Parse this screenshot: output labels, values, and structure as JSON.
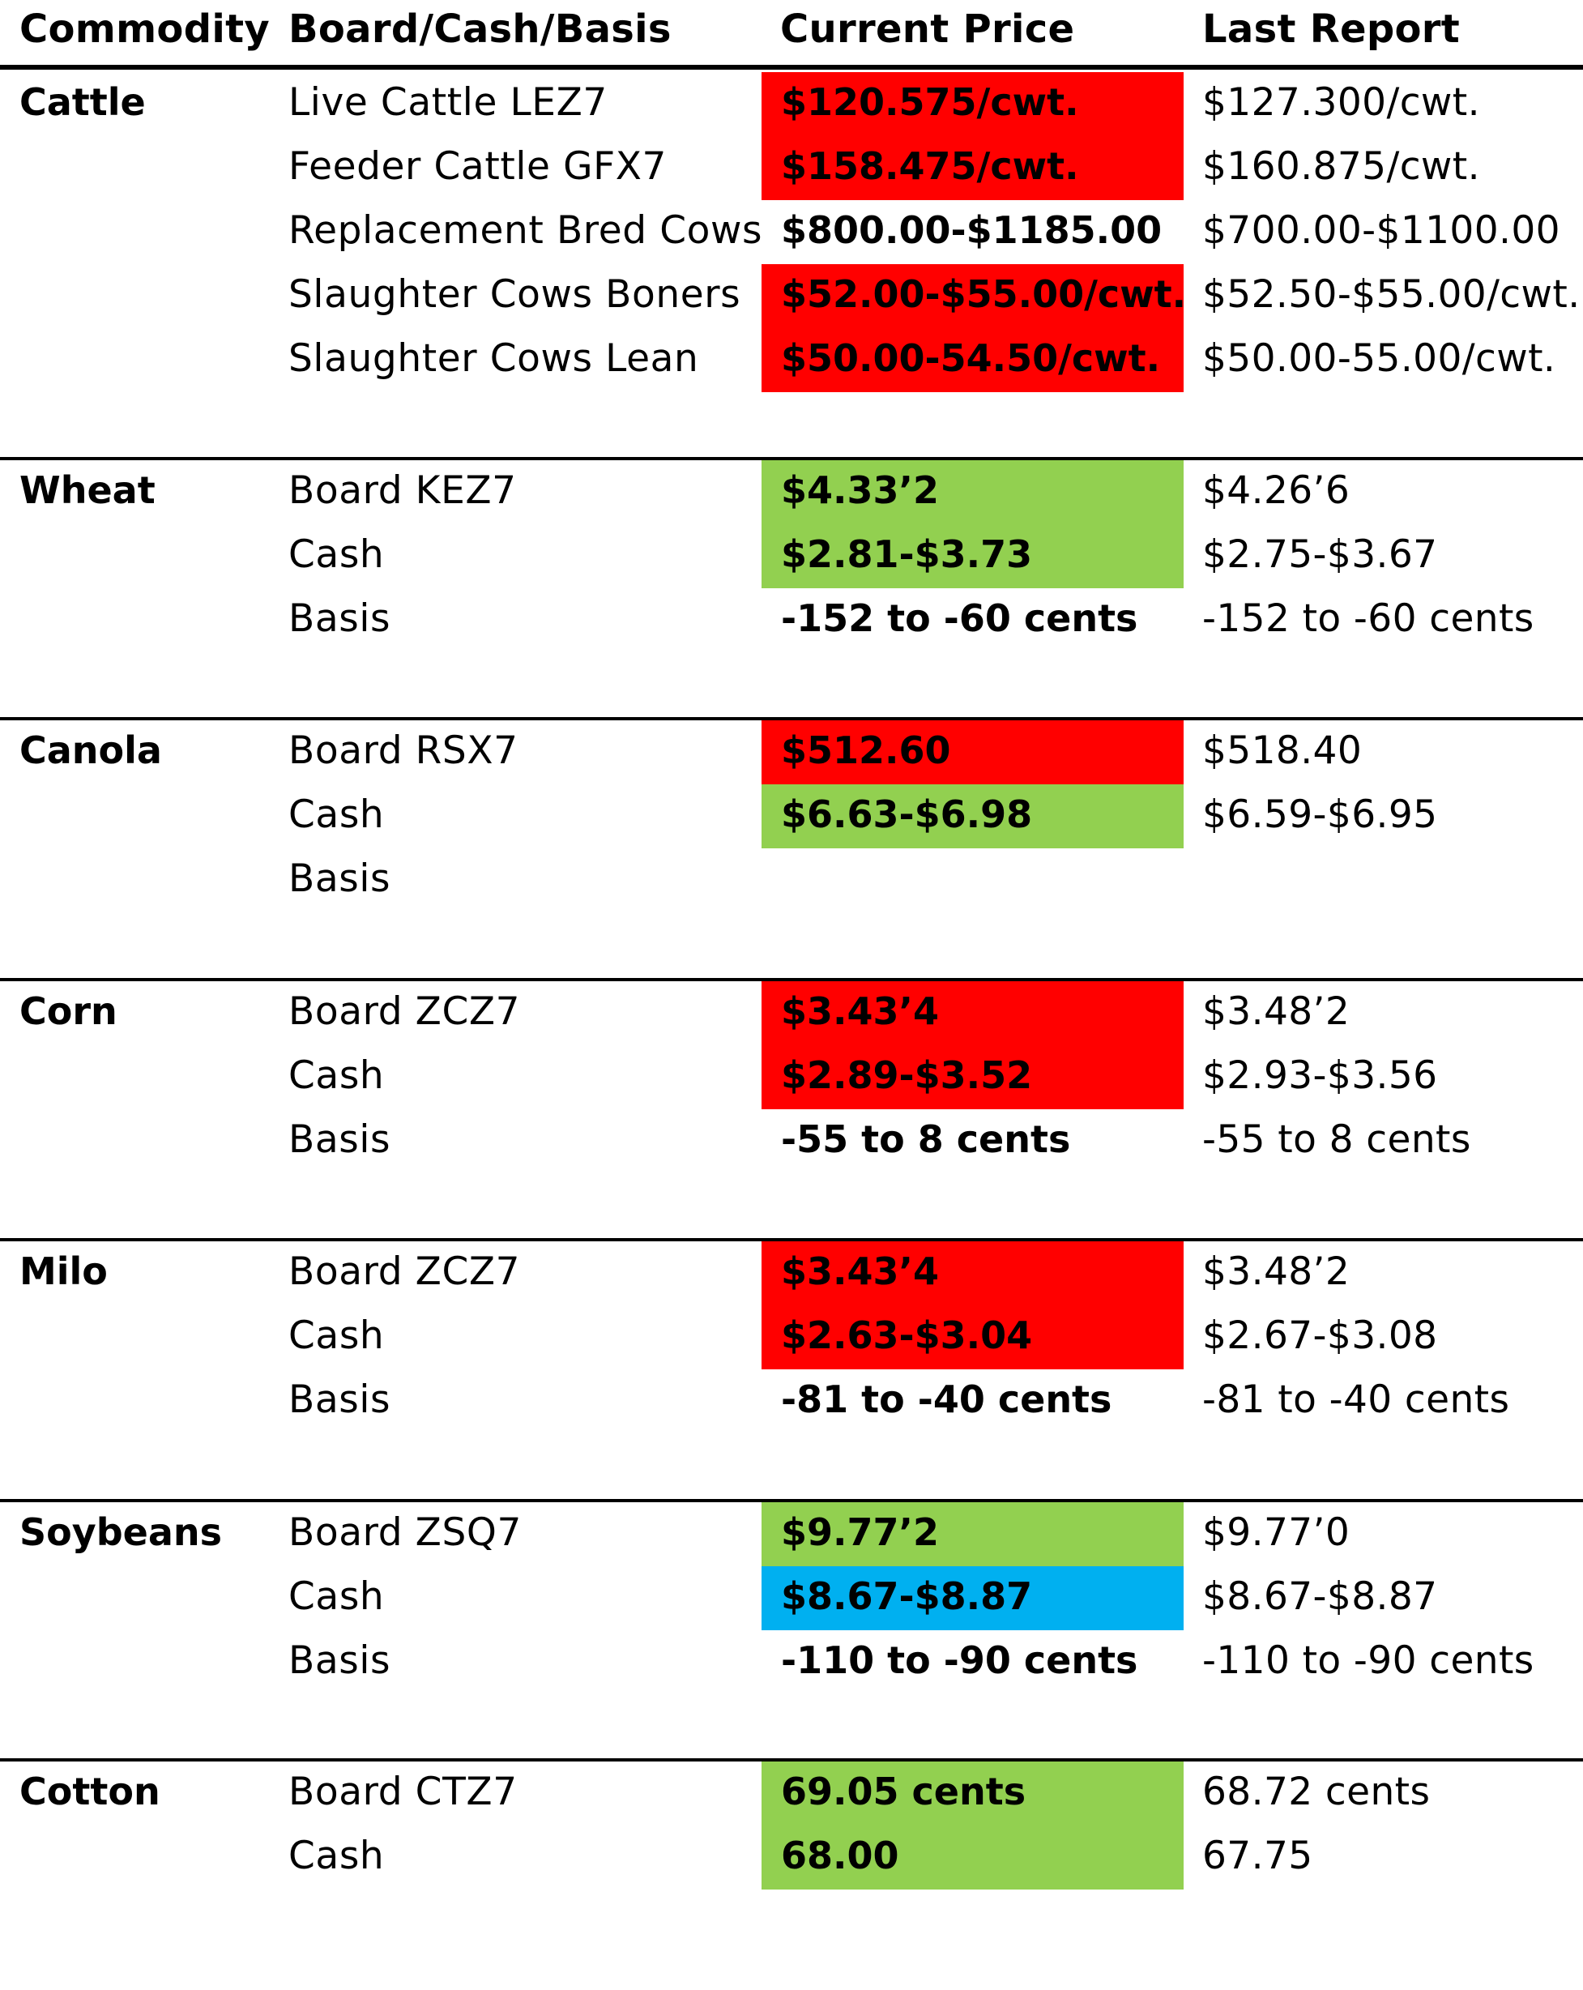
{
  "headers": {
    "commodity": "Commodity",
    "board": "Board/Cash/Basis",
    "current": "Current Price",
    "last": "Last Report"
  },
  "colors": {
    "red": "#ff0000",
    "green": "#92d050",
    "blue": "#00b0f0"
  },
  "groups": [
    {
      "name": "Cattle",
      "rows": [
        {
          "label": "Live Cattle LEZ7",
          "current": "$120.575/cwt.",
          "last": "$127.300/cwt.",
          "highlight": "red"
        },
        {
          "label": "Feeder Cattle GFX7",
          "current": "$158.475/cwt.",
          "last": "$160.875/cwt.",
          "highlight": "red"
        },
        {
          "label": "Replacement Bred Cows",
          "current": "$800.00-$1185.00",
          "last": "$700.00-$1100.00",
          "highlight": "none"
        },
        {
          "label": "Slaughter Cows Boners",
          "current": "$52.00-$55.00/cwt.",
          "last": "$52.50-$55.00/cwt.",
          "highlight": "red"
        },
        {
          "label": "Slaughter Cows Lean",
          "current": "$50.00-54.50/cwt.",
          "last": "$50.00-55.00/cwt.",
          "highlight": "red"
        }
      ]
    },
    {
      "name": "Wheat",
      "rows": [
        {
          "label": "Board KEZ7",
          "current": "$4.33’2",
          "last": "$4.26’6",
          "highlight": "green"
        },
        {
          "label": "Cash",
          "current": "$2.81-$3.73",
          "last": "$2.75-$3.67",
          "highlight": "green"
        },
        {
          "label": "Basis",
          "current": "-152 to -60 cents",
          "last": "-152 to -60 cents",
          "highlight": "none"
        }
      ]
    },
    {
      "name": "Canola",
      "rows": [
        {
          "label": "Board RSX7",
          "current": "$512.60",
          "last": "$518.40",
          "highlight": "red"
        },
        {
          "label": "Cash",
          "current": "$6.63-$6.98",
          "last": "$6.59-$6.95",
          "highlight": "green"
        },
        {
          "label": "Basis",
          "current": "",
          "last": "",
          "highlight": "none"
        }
      ]
    },
    {
      "name": "Corn",
      "rows": [
        {
          "label": "Board ZCZ7",
          "current": "$3.43’4",
          "last": "$3.48’2",
          "highlight": "red"
        },
        {
          "label": "Cash",
          "current": "$2.89-$3.52",
          "last": "$2.93-$3.56",
          "highlight": "red"
        },
        {
          "label": "Basis",
          "current": "-55 to 8 cents",
          "last": "-55 to 8 cents",
          "highlight": "none"
        }
      ]
    },
    {
      "name": "Milo",
      "rows": [
        {
          "label": "Board ZCZ7",
          "current": "$3.43’4",
          "last": "$3.48’2",
          "highlight": "red"
        },
        {
          "label": "Cash",
          "current": "$2.63-$3.04",
          "last": "$2.67-$3.08",
          "highlight": "red"
        },
        {
          "label": "Basis",
          "current": "-81 to -40 cents",
          "last": "-81 to -40 cents",
          "highlight": "none"
        }
      ]
    },
    {
      "name": "Soybeans",
      "rows": [
        {
          "label": "Board ZSQ7",
          "current": "$9.77’2",
          "last": "$9.77’0",
          "highlight": "green"
        },
        {
          "label": "Cash",
          "current": "$8.67-$8.87",
          "last": "$8.67-$8.87",
          "highlight": "blue"
        },
        {
          "label": "Basis",
          "current": "-110 to -90 cents",
          "last": "-110 to -90 cents",
          "highlight": "none"
        }
      ]
    },
    {
      "name": "Cotton",
      "rows": [
        {
          "label": "Board CTZ7",
          "current": "69.05 cents",
          "last": "68.72 cents",
          "highlight": "green"
        },
        {
          "label": "Cash",
          "current": "68.00",
          "last": "67.75",
          "highlight": "green"
        }
      ]
    }
  ]
}
